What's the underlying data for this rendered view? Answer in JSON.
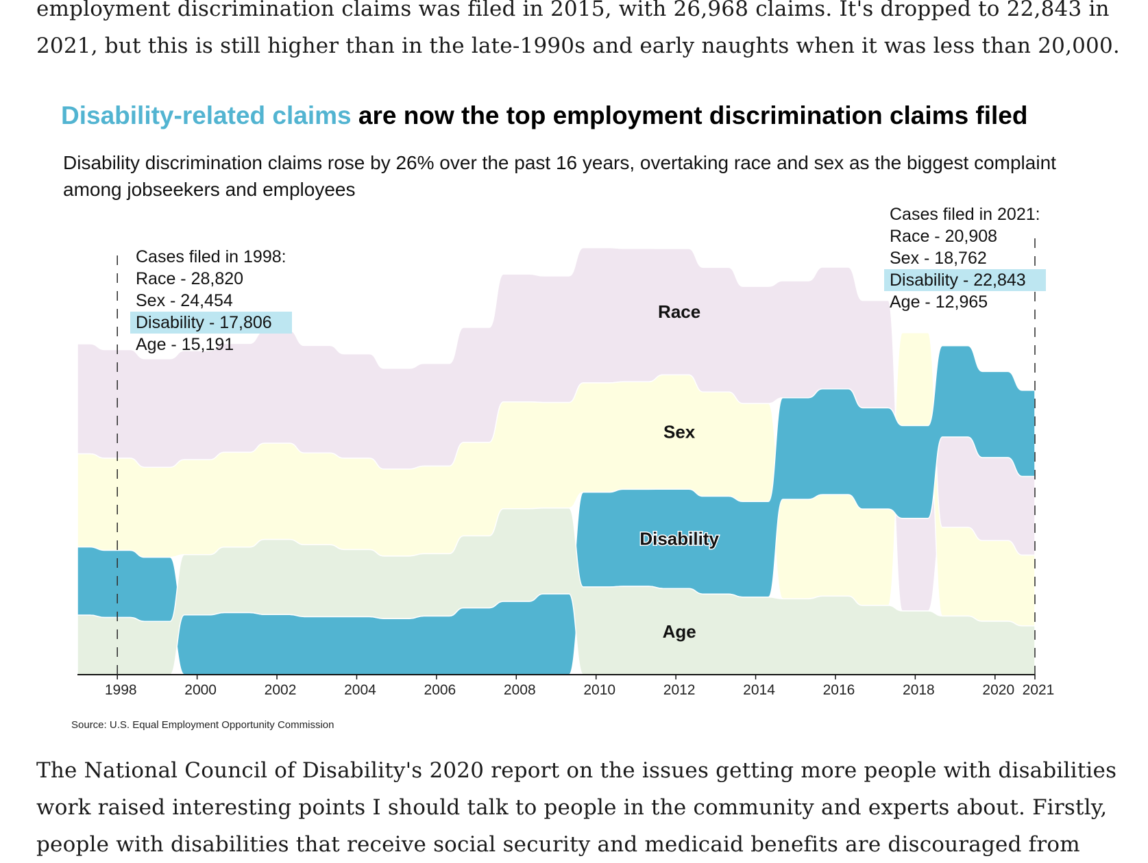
{
  "article": {
    "para_top": "employment discrimination claims was filed in 2015, with 26,968 claims. It's dropped to 22,843 in 2021, but this is still higher than in the late-1990s and early naughts when it was less than 20,000.",
    "para_bottom": "The National Council of Disability's 2020 report on the issues getting more people with disabilities work raised interesting points I should talk to people in the community and experts about. Firstly, people with disabilities that receive social security and medicaid benefits are discouraged from"
  },
  "chart_data": {
    "type": "area",
    "subtype": "ranked stream (bump area) chart",
    "title_highlight": "Disability-related claims",
    "title_rest": " are now the top employment discrimination claims filed",
    "subtitle": "Disability discrimination claims rose by 26% over the past 16 years, overtaking race and sex as the biggest complaint among jobseekers and employees",
    "source": "Source: U.S. Equal Employment Opportunity Commission",
    "xlim": [
      1997,
      2021
    ],
    "x_ticks": [
      "1998",
      "2000",
      "2002",
      "2004",
      "2006",
      "2008",
      "2010",
      "2012",
      "2014",
      "2016",
      "2018",
      "2020",
      "2021"
    ],
    "years": [
      1997,
      1998,
      1999,
      2000,
      2001,
      2002,
      2003,
      2004,
      2005,
      2006,
      2007,
      2008,
      2009,
      2010,
      2011,
      2012,
      2013,
      2014,
      2015,
      2016,
      2017,
      2018,
      2019,
      2020,
      2021
    ],
    "series": [
      {
        "name": "Race",
        "color": "#f0e6f0",
        "values": [
          29199,
          28820,
          28819,
          28945,
          28912,
          29910,
          28526,
          27696,
          26740,
          27238,
          30510,
          33937,
          33579,
          35890,
          35395,
          33512,
          33068,
          31073,
          31027,
          32309,
          28528,
          24600,
          23976,
          22064,
          20908
        ]
      },
      {
        "name": "Sex",
        "color": "#fefee0",
        "values": [
          24728,
          24454,
          23907,
          25194,
          25140,
          25536,
          24362,
          24249,
          23094,
          23247,
          24826,
          28372,
          28028,
          29029,
          28534,
          30356,
          27687,
          26027,
          26396,
          26934,
          25605,
          24655,
          23532,
          21398,
          18762
        ]
      },
      {
        "name": "Disability",
        "color": "#52b4d1",
        "values": [
          18108,
          17806,
          17007,
          15864,
          16470,
          15964,
          15377,
          15376,
          14893,
          15575,
          17734,
          19453,
          21451,
          25165,
          25742,
          26379,
          25957,
          25369,
          26968,
          28073,
          26838,
          24605,
          24238,
          22843,
          22843
        ]
      },
      {
        "name": "Age",
        "color": "#e6f0e1",
        "values": [
          15785,
          15191,
          14141,
          16008,
          17405,
          19921,
          19124,
          17837,
          16585,
          16548,
          19103,
          24582,
          22778,
          23264,
          23465,
          22857,
          21396,
          20588,
          20144,
          20857,
          18376,
          16911,
          15573,
          14183,
          12965
        ]
      }
    ],
    "stream_labels": [
      "Race",
      "Sex",
      "Disability",
      "Age"
    ],
    "annotations": [
      {
        "year": "1998",
        "header": "Cases filed in 1998:",
        "lines": [
          "Race - 28,820",
          "Sex - 24,454",
          "Disability - 17,806",
          "Age - 15,191"
        ],
        "highlight_index": 2
      },
      {
        "year": "2021",
        "header": "Cases filed in 2021:",
        "lines": [
          "Race - 20,908",
          "Sex - 18,762",
          "Disability - 22,843",
          "Age - 12,965"
        ],
        "highlight_index": 2
      }
    ],
    "grid": false,
    "legend": "none (inline labels)",
    "highlight_color": "#bde6f1"
  }
}
